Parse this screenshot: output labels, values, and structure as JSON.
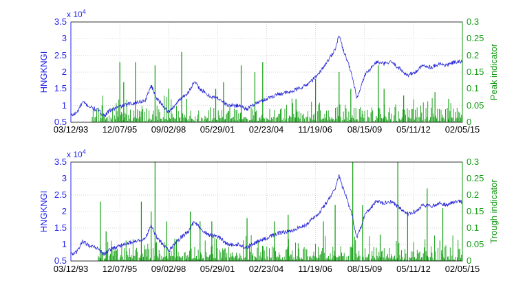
{
  "chart_data": [
    {
      "type": "line",
      "subtype": "dual-axis line + spike",
      "x_tick_labels": [
        "03/12/93",
        "12/07/95",
        "09/02/98",
        "05/29/01",
        "02/23/04",
        "11/19/06",
        "08/15/09",
        "05/11/12",
        "02/05/15"
      ],
      "ylabel": "HNGKNGI",
      "ylabel_right": "Peak indicator",
      "y_multiplier": "x 10",
      "y_multiplier_exp": "4",
      "ylim": [
        0.5,
        3.5
      ],
      "ylim_right": [
        0,
        0.3
      ],
      "yticks": [
        "0.5",
        "1",
        "1.5",
        "2",
        "2.5",
        "3",
        "3.5"
      ],
      "yticks_right": [
        "0",
        "0.05",
        "0.1",
        "0.15",
        "0.2",
        "0.25",
        "0.3"
      ],
      "grid": true,
      "colors": {
        "index": "#2525d6",
        "indicator": "#0b9c0b",
        "axis_left": "#2222ee",
        "axis_right": "#119911"
      },
      "index_anchors": [
        {
          "t": 0.0,
          "v": 0.7
        },
        {
          "t": 0.015,
          "v": 0.78
        },
        {
          "t": 0.03,
          "v": 1.1
        },
        {
          "t": 0.05,
          "v": 0.95
        },
        {
          "t": 0.07,
          "v": 0.85
        },
        {
          "t": 0.085,
          "v": 0.7
        },
        {
          "t": 0.1,
          "v": 0.85
        },
        {
          "t": 0.12,
          "v": 0.95
        },
        {
          "t": 0.15,
          "v": 1.05
        },
        {
          "t": 0.17,
          "v": 1.1
        },
        {
          "t": 0.19,
          "v": 1.15
        },
        {
          "t": 0.205,
          "v": 1.6
        },
        {
          "t": 0.22,
          "v": 1.2
        },
        {
          "t": 0.235,
          "v": 1.0
        },
        {
          "t": 0.25,
          "v": 0.8
        },
        {
          "t": 0.265,
          "v": 1.0
        },
        {
          "t": 0.28,
          "v": 1.2
        },
        {
          "t": 0.3,
          "v": 1.4
        },
        {
          "t": 0.315,
          "v": 1.7
        },
        {
          "t": 0.33,
          "v": 1.5
        },
        {
          "t": 0.35,
          "v": 1.3
        },
        {
          "t": 0.38,
          "v": 1.2
        },
        {
          "t": 0.4,
          "v": 1.0
        },
        {
          "t": 0.43,
          "v": 1.0
        },
        {
          "t": 0.45,
          "v": 0.9
        },
        {
          "t": 0.47,
          "v": 1.05
        },
        {
          "t": 0.49,
          "v": 1.15
        },
        {
          "t": 0.51,
          "v": 1.25
        },
        {
          "t": 0.53,
          "v": 1.35
        },
        {
          "t": 0.56,
          "v": 1.4
        },
        {
          "t": 0.6,
          "v": 1.6
        },
        {
          "t": 0.63,
          "v": 1.9
        },
        {
          "t": 0.66,
          "v": 2.4
        },
        {
          "t": 0.675,
          "v": 2.7
        },
        {
          "t": 0.685,
          "v": 3.1
        },
        {
          "t": 0.695,
          "v": 2.7
        },
        {
          "t": 0.705,
          "v": 2.4
        },
        {
          "t": 0.72,
          "v": 1.8
        },
        {
          "t": 0.73,
          "v": 1.2
        },
        {
          "t": 0.74,
          "v": 1.5
        },
        {
          "t": 0.75,
          "v": 1.9
        },
        {
          "t": 0.765,
          "v": 2.1
        },
        {
          "t": 0.78,
          "v": 2.3
        },
        {
          "t": 0.8,
          "v": 2.25
        },
        {
          "t": 0.82,
          "v": 2.3
        },
        {
          "t": 0.84,
          "v": 2.1
        },
        {
          "t": 0.86,
          "v": 1.9
        },
        {
          "t": 0.88,
          "v": 2.0
        },
        {
          "t": 0.9,
          "v": 2.2
        },
        {
          "t": 0.92,
          "v": 2.15
        },
        {
          "t": 0.94,
          "v": 2.25
        },
        {
          "t": 0.96,
          "v": 2.2
        },
        {
          "t": 0.98,
          "v": 2.3
        },
        {
          "t": 1.0,
          "v": 2.3
        }
      ],
      "indicator_big_spikes": [
        {
          "t": 0.125,
          "v": 0.18
        },
        {
          "t": 0.135,
          "v": 0.12
        },
        {
          "t": 0.165,
          "v": 0.18
        },
        {
          "t": 0.215,
          "v": 0.17
        },
        {
          "t": 0.25,
          "v": 0.1
        },
        {
          "t": 0.283,
          "v": 0.21
        },
        {
          "t": 0.296,
          "v": 0.07
        },
        {
          "t": 0.37,
          "v": 0.1
        },
        {
          "t": 0.39,
          "v": 0.12
        },
        {
          "t": 0.435,
          "v": 0.17
        },
        {
          "t": 0.47,
          "v": 0.15
        },
        {
          "t": 0.49,
          "v": 0.18
        },
        {
          "t": 0.575,
          "v": 0.07
        },
        {
          "t": 0.625,
          "v": 0.13
        },
        {
          "t": 0.685,
          "v": 0.15
        },
        {
          "t": 0.715,
          "v": 0.1
        },
        {
          "t": 0.785,
          "v": 0.17
        },
        {
          "t": 0.8,
          "v": 0.1
        },
        {
          "t": 0.85,
          "v": 0.08
        },
        {
          "t": 0.93,
          "v": 0.09
        },
        {
          "t": 0.965,
          "v": 0.07
        }
      ],
      "indicator_start": 0.05
    },
    {
      "type": "line",
      "subtype": "dual-axis line + spike",
      "x_tick_labels": [
        "03/12/93",
        "12/07/95",
        "09/02/98",
        "05/29/01",
        "02/23/04",
        "11/19/06",
        "08/15/09",
        "05/11/12",
        "02/05/15"
      ],
      "ylabel": "HNGKNGI",
      "ylabel_right": "Trough indicator",
      "y_multiplier": "x 10",
      "y_multiplier_exp": "4",
      "ylim": [
        0.5,
        3.5
      ],
      "ylim_right": [
        0,
        0.3
      ],
      "yticks": [
        "0.5",
        "1",
        "1.5",
        "2",
        "2.5",
        "3",
        "3.5"
      ],
      "yticks_right": [
        "0",
        "0.05",
        "0.1",
        "0.15",
        "0.2",
        "0.25",
        "0.3"
      ],
      "grid": true,
      "colors": {
        "index": "#2525d6",
        "indicator": "#0b9c0b",
        "axis_left": "#2222ee",
        "axis_right": "#119911"
      },
      "index_anchors": [
        {
          "t": 0.0,
          "v": 0.7
        },
        {
          "t": 0.015,
          "v": 0.78
        },
        {
          "t": 0.03,
          "v": 1.1
        },
        {
          "t": 0.05,
          "v": 0.95
        },
        {
          "t": 0.07,
          "v": 0.85
        },
        {
          "t": 0.085,
          "v": 0.7
        },
        {
          "t": 0.1,
          "v": 0.85
        },
        {
          "t": 0.12,
          "v": 0.95
        },
        {
          "t": 0.15,
          "v": 1.05
        },
        {
          "t": 0.17,
          "v": 1.1
        },
        {
          "t": 0.19,
          "v": 1.15
        },
        {
          "t": 0.205,
          "v": 1.6
        },
        {
          "t": 0.22,
          "v": 1.2
        },
        {
          "t": 0.235,
          "v": 1.0
        },
        {
          "t": 0.25,
          "v": 0.8
        },
        {
          "t": 0.265,
          "v": 1.0
        },
        {
          "t": 0.28,
          "v": 1.2
        },
        {
          "t": 0.3,
          "v": 1.4
        },
        {
          "t": 0.315,
          "v": 1.7
        },
        {
          "t": 0.33,
          "v": 1.5
        },
        {
          "t": 0.35,
          "v": 1.3
        },
        {
          "t": 0.38,
          "v": 1.2
        },
        {
          "t": 0.4,
          "v": 1.0
        },
        {
          "t": 0.43,
          "v": 1.0
        },
        {
          "t": 0.45,
          "v": 0.9
        },
        {
          "t": 0.47,
          "v": 1.05
        },
        {
          "t": 0.49,
          "v": 1.15
        },
        {
          "t": 0.51,
          "v": 1.25
        },
        {
          "t": 0.53,
          "v": 1.35
        },
        {
          "t": 0.56,
          "v": 1.4
        },
        {
          "t": 0.6,
          "v": 1.6
        },
        {
          "t": 0.63,
          "v": 1.9
        },
        {
          "t": 0.66,
          "v": 2.4
        },
        {
          "t": 0.675,
          "v": 2.7
        },
        {
          "t": 0.685,
          "v": 3.1
        },
        {
          "t": 0.695,
          "v": 2.7
        },
        {
          "t": 0.705,
          "v": 2.4
        },
        {
          "t": 0.72,
          "v": 1.8
        },
        {
          "t": 0.73,
          "v": 1.2
        },
        {
          "t": 0.74,
          "v": 1.5
        },
        {
          "t": 0.75,
          "v": 1.9
        },
        {
          "t": 0.765,
          "v": 2.1
        },
        {
          "t": 0.78,
          "v": 2.3
        },
        {
          "t": 0.8,
          "v": 2.25
        },
        {
          "t": 0.82,
          "v": 2.3
        },
        {
          "t": 0.84,
          "v": 2.1
        },
        {
          "t": 0.86,
          "v": 1.9
        },
        {
          "t": 0.88,
          "v": 2.0
        },
        {
          "t": 0.9,
          "v": 2.2
        },
        {
          "t": 0.92,
          "v": 2.15
        },
        {
          "t": 0.94,
          "v": 2.25
        },
        {
          "t": 0.96,
          "v": 2.2
        },
        {
          "t": 0.98,
          "v": 2.3
        },
        {
          "t": 1.0,
          "v": 2.3
        }
      ],
      "indicator_big_spikes": [
        {
          "t": 0.075,
          "v": 0.18
        },
        {
          "t": 0.09,
          "v": 0.09
        },
        {
          "t": 0.18,
          "v": 0.18
        },
        {
          "t": 0.205,
          "v": 0.15
        },
        {
          "t": 0.215,
          "v": 0.3
        },
        {
          "t": 0.245,
          "v": 0.12
        },
        {
          "t": 0.305,
          "v": 0.15
        },
        {
          "t": 0.33,
          "v": 0.12
        },
        {
          "t": 0.36,
          "v": 0.12
        },
        {
          "t": 0.45,
          "v": 0.13
        },
        {
          "t": 0.52,
          "v": 0.12
        },
        {
          "t": 0.555,
          "v": 0.14
        },
        {
          "t": 0.645,
          "v": 0.12
        },
        {
          "t": 0.675,
          "v": 0.17
        },
        {
          "t": 0.72,
          "v": 0.3
        },
        {
          "t": 0.745,
          "v": 0.17
        },
        {
          "t": 0.79,
          "v": 0.08
        },
        {
          "t": 0.835,
          "v": 0.3
        },
        {
          "t": 0.86,
          "v": 0.15
        },
        {
          "t": 0.91,
          "v": 0.22
        },
        {
          "t": 0.95,
          "v": 0.16
        }
      ],
      "indicator_start": 0.07
    }
  ]
}
